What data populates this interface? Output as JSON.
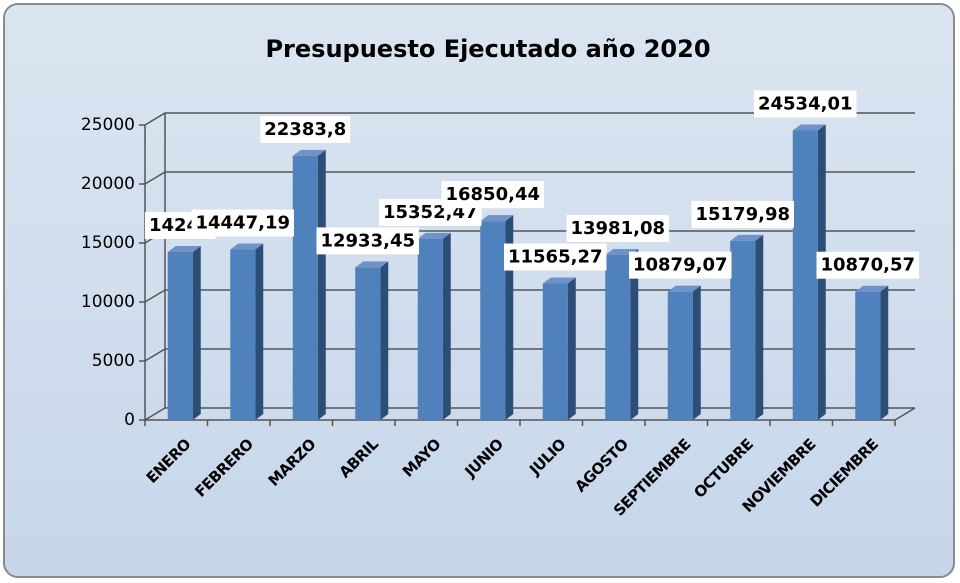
{
  "chart_data": {
    "type": "bar",
    "title": "Presupuesto Ejecutado año 2020",
    "categories": [
      "ENERO",
      "FEBRERO",
      "MARZO",
      "ABRIL",
      "MAYO",
      "JUNIO",
      "JULIO",
      "AGOSTO",
      "SEPTIEMBRE",
      "OCTUBRE",
      "NOVIEMBRE",
      "DICIEMBRE"
    ],
    "values": [
      14240,
      14447.19,
      22383.8,
      12933.45,
      15352.47,
      16850.44,
      11565.27,
      13981.08,
      10879.07,
      15179.98,
      24534.01,
      10870.57
    ],
    "value_labels": [
      "14240",
      "14447,19",
      "22383,8",
      "12933,45",
      "15352,47",
      "16850,44",
      "11565,27",
      "13981,08",
      "10879,07",
      "15179,98",
      "24534,01",
      "10870,57"
    ],
    "color": "#4f81bd",
    "ylim": [
      0,
      25000
    ],
    "yticks": [
      0,
      5000,
      10000,
      15000,
      20000,
      25000
    ],
    "grid": true
  }
}
